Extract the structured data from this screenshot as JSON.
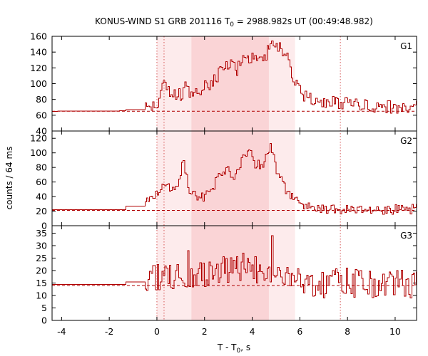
{
  "chart_data": {
    "type": "line",
    "title": "KONUS-WIND S1 GRB 201116 T",
    "title_sub": "0",
    "title_rest": " = 2988.982s UT (00:49:48.982)",
    "xlabel": "T - T",
    "xlabel_sub": "0",
    "xlabel_rest": ", s",
    "ylabel": "counts / 64 ms",
    "xlim": [
      -4.4,
      10.9
    ],
    "x_ticks": [
      -4,
      -2,
      0,
      2,
      4,
      6,
      8,
      10
    ],
    "x_tick_labels": [
      "-4",
      "-2",
      "0",
      "2",
      "4",
      "6",
      "8",
      "10"
    ],
    "bin_width_s": 0.064,
    "shaded_intervals": [
      {
        "from": 0.0,
        "to": 5.8,
        "shade": "light"
      },
      {
        "from": 1.45,
        "to": 4.7,
        "shade": "dark"
      }
    ],
    "dotted_markers": [
      0.0,
      0.3,
      7.7
    ],
    "panels": [
      {
        "label": "G1",
        "ylim": [
          40,
          160
        ],
        "y_ticks": [
          40,
          60,
          80,
          100,
          120,
          140,
          160
        ],
        "y_tick_labels": [
          "40",
          "60",
          "80",
          "100",
          "120",
          "140",
          "160"
        ],
        "background_level": 65,
        "pre_trigger_steps": [
          [
            -4.4,
            65
          ],
          [
            -1.3,
            65.5
          ],
          [
            -1.3,
            67
          ],
          [
            -0.5,
            67
          ]
        ],
        "signal_anchors": [
          [
            -0.5,
            68
          ],
          [
            0.0,
            70
          ],
          [
            0.1,
            95
          ],
          [
            0.25,
            110
          ],
          [
            0.4,
            90
          ],
          [
            0.6,
            92
          ],
          [
            0.8,
            85
          ],
          [
            1.0,
            88
          ],
          [
            1.2,
            95
          ],
          [
            1.4,
            84
          ],
          [
            1.6,
            90
          ],
          [
            2.0,
            95
          ],
          [
            2.4,
            108
          ],
          [
            2.8,
            118
          ],
          [
            3.0,
            124
          ],
          [
            3.3,
            117
          ],
          [
            3.6,
            130
          ],
          [
            3.9,
            135
          ],
          [
            4.2,
            133
          ],
          [
            4.5,
            135
          ],
          [
            4.85,
            148
          ],
          [
            5.1,
            145
          ],
          [
            5.4,
            135
          ],
          [
            5.7,
            108
          ],
          [
            6.0,
            86
          ],
          [
            6.5,
            80
          ],
          [
            7.0,
            76
          ],
          [
            8.0,
            73
          ],
          [
            9.0,
            70
          ],
          [
            10.9,
            70
          ]
        ],
        "noise_amplitude": 9
      },
      {
        "label": "G2",
        "ylim": [
          0,
          130
        ],
        "y_ticks": [
          0,
          20,
          40,
          60,
          80,
          100,
          120
        ],
        "y_tick_labels": [
          "0",
          "20",
          "40",
          "60",
          "80",
          "100",
          "120"
        ],
        "background_level": 21,
        "pre_trigger_steps": [
          [
            -4.4,
            22
          ],
          [
            -1.3,
            22
          ],
          [
            -1.3,
            27
          ],
          [
            -0.5,
            27
          ]
        ],
        "signal_anchors": [
          [
            -0.5,
            30
          ],
          [
            0.0,
            42
          ],
          [
            0.2,
            62
          ],
          [
            0.4,
            55
          ],
          [
            0.6,
            45
          ],
          [
            0.8,
            50
          ],
          [
            1.0,
            78
          ],
          [
            1.1,
            95
          ],
          [
            1.2,
            70
          ],
          [
            1.4,
            42
          ],
          [
            1.8,
            38
          ],
          [
            2.2,
            45
          ],
          [
            2.6,
            70
          ],
          [
            2.9,
            78
          ],
          [
            3.2,
            70
          ],
          [
            3.5,
            85
          ],
          [
            3.9,
            108
          ],
          [
            4.1,
            85
          ],
          [
            4.4,
            80
          ],
          [
            4.75,
            110
          ],
          [
            5.0,
            78
          ],
          [
            5.3,
            55
          ],
          [
            5.6,
            40
          ],
          [
            6.0,
            30
          ],
          [
            7.0,
            24
          ],
          [
            8.0,
            22
          ],
          [
            10.9,
            23
          ]
        ],
        "noise_amplitude": 7
      },
      {
        "label": "G3",
        "ylim": [
          0,
          38
        ],
        "y_ticks": [
          0,
          5,
          10,
          15,
          20,
          25,
          30,
          35
        ],
        "y_tick_labels": [
          "0",
          "5",
          "10",
          "15",
          "20",
          "25",
          "30",
          "35"
        ],
        "background_level": 14,
        "pre_trigger_steps": [
          [
            -4.4,
            14.5
          ],
          [
            -1.3,
            14.5
          ],
          [
            -1.3,
            15.5
          ],
          [
            -0.5,
            15.5
          ]
        ],
        "signal_anchors": [
          [
            -0.5,
            15
          ],
          [
            0.0,
            17
          ],
          [
            1.0,
            19
          ],
          [
            2.0,
            19
          ],
          [
            3.0,
            20
          ],
          [
            4.0,
            20
          ],
          [
            4.6,
            21
          ],
          [
            5.0,
            19
          ],
          [
            6.0,
            16
          ],
          [
            7.0,
            15
          ],
          [
            10.9,
            15
          ]
        ],
        "noise_amplitude": 6,
        "spikes": [
          [
            4.8,
            34
          ],
          [
            1.3,
            28
          ],
          [
            3.6,
            27
          ]
        ]
      }
    ]
  }
}
